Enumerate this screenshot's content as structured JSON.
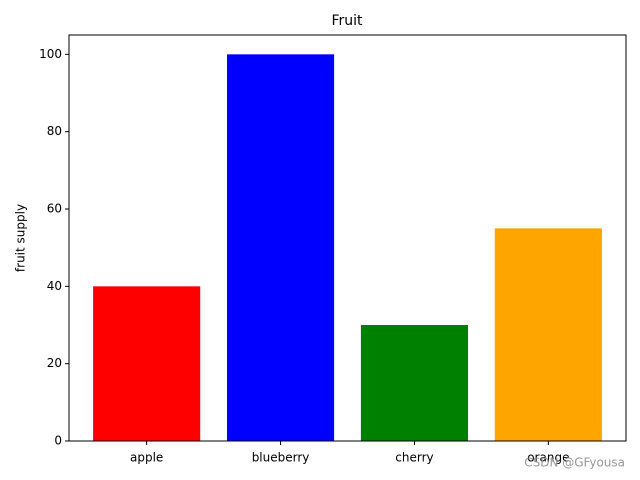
{
  "chart_data": {
    "type": "bar",
    "title": "Fruit",
    "y_label": "fruit supply",
    "categories": [
      "apple",
      "blueberry",
      "cherry",
      "orange"
    ],
    "values": [
      40,
      100,
      30,
      55
    ],
    "colors": [
      "red",
      "blue",
      "green",
      "orange"
    ],
    "ylim": [
      0,
      105
    ],
    "yticks": [
      0,
      20,
      40,
      60,
      80,
      100
    ],
    "grid": false,
    "watermark": "CSDN @GFyousa"
  }
}
